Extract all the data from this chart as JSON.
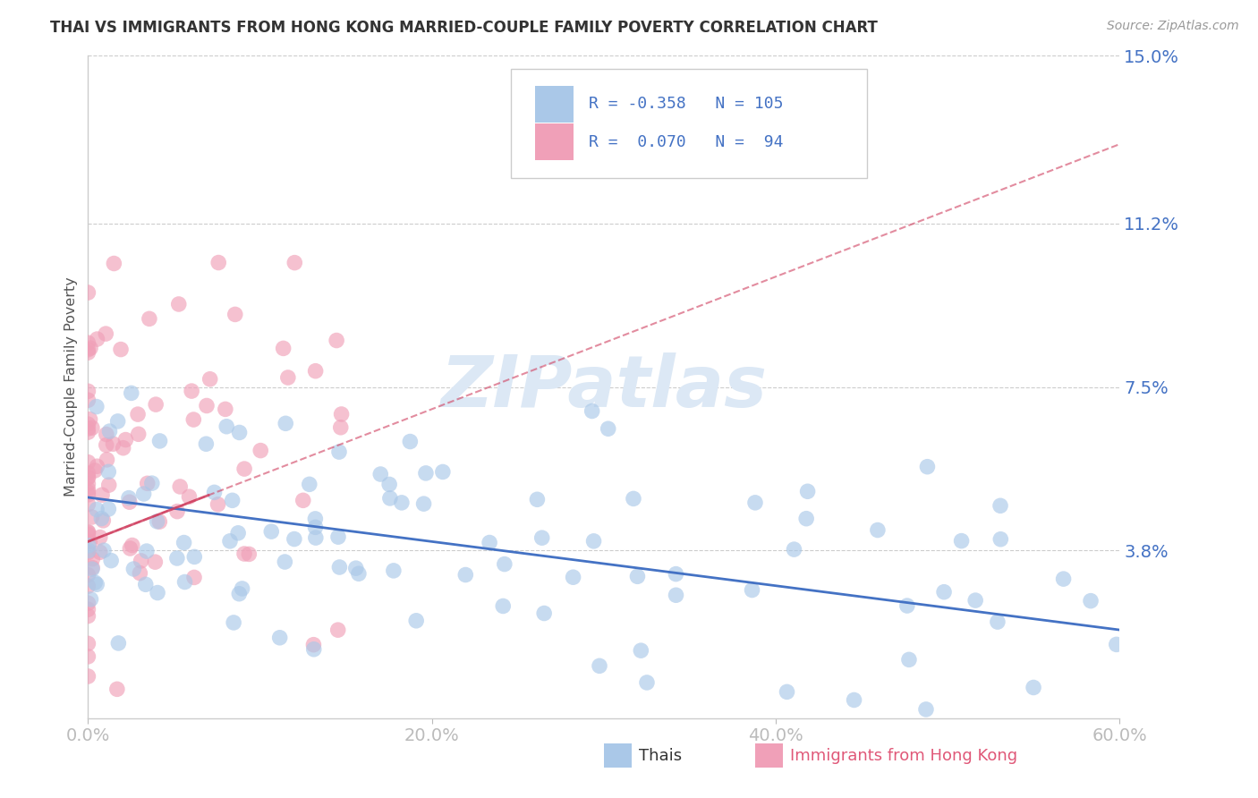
{
  "title": "THAI VS IMMIGRANTS FROM HONG KONG MARRIED-COUPLE FAMILY POVERTY CORRELATION CHART",
  "source": "Source: ZipAtlas.com",
  "series1_label": "Thais",
  "series2_label": "Immigrants from Hong Kong",
  "ylabel_label": "Married-Couple Family Poverty",
  "series1_R": -0.358,
  "series1_N": 105,
  "series2_R": 0.07,
  "series2_N": 94,
  "series1_color": "#aac8e8",
  "series1_line_color": "#4472c4",
  "series2_color": "#f0a0b8",
  "series2_line_color": "#d04060",
  "xmin": 0.0,
  "xmax": 0.6,
  "ymin": 0.0,
  "ymax": 0.15,
  "yticks": [
    0.038,
    0.075,
    0.112,
    0.15
  ],
  "ytick_labels": [
    "3.8%",
    "7.5%",
    "11.2%",
    "15.0%"
  ],
  "xticks": [
    0.0,
    0.2,
    0.4,
    0.6
  ],
  "xtick_labels": [
    "0.0%",
    "20.0%",
    "40.0%",
    "60.0%"
  ],
  "grid_color": "#cccccc",
  "background_color": "#ffffff",
  "watermark": "ZIPatlas",
  "watermark_color": "#dce8f5",
  "title_color": "#333333",
  "tick_label_color": "#4472c4",
  "legend_text_color": "#4472c4"
}
